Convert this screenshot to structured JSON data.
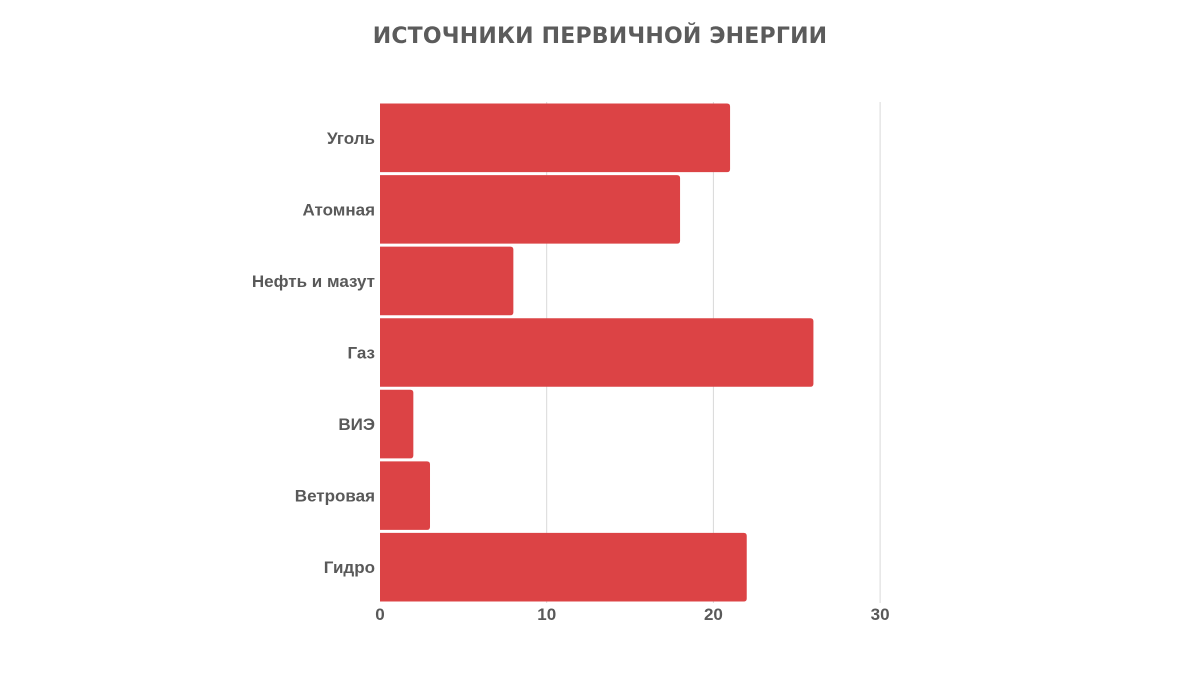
{
  "chart_data": {
    "type": "bar",
    "orientation": "horizontal",
    "title": "ИСТОЧНИКИ ПЕРВИЧНОЙ ЭНЕРГИИ",
    "categories": [
      "Уголь",
      "Атомная",
      "Нефть и мазут",
      "Газ",
      "ВИЭ",
      "Ветровая",
      "Гидро"
    ],
    "values": [
      21,
      18,
      8,
      26,
      2,
      3,
      22
    ],
    "xlim": [
      0,
      30
    ],
    "xticks": [
      0,
      10,
      20,
      30
    ],
    "xlabel": "",
    "ylabel": "",
    "grid": true,
    "legend": "none",
    "bar_color": "#dc4345",
    "grid_color": "#d9d9d9",
    "text_color": "#595959"
  }
}
